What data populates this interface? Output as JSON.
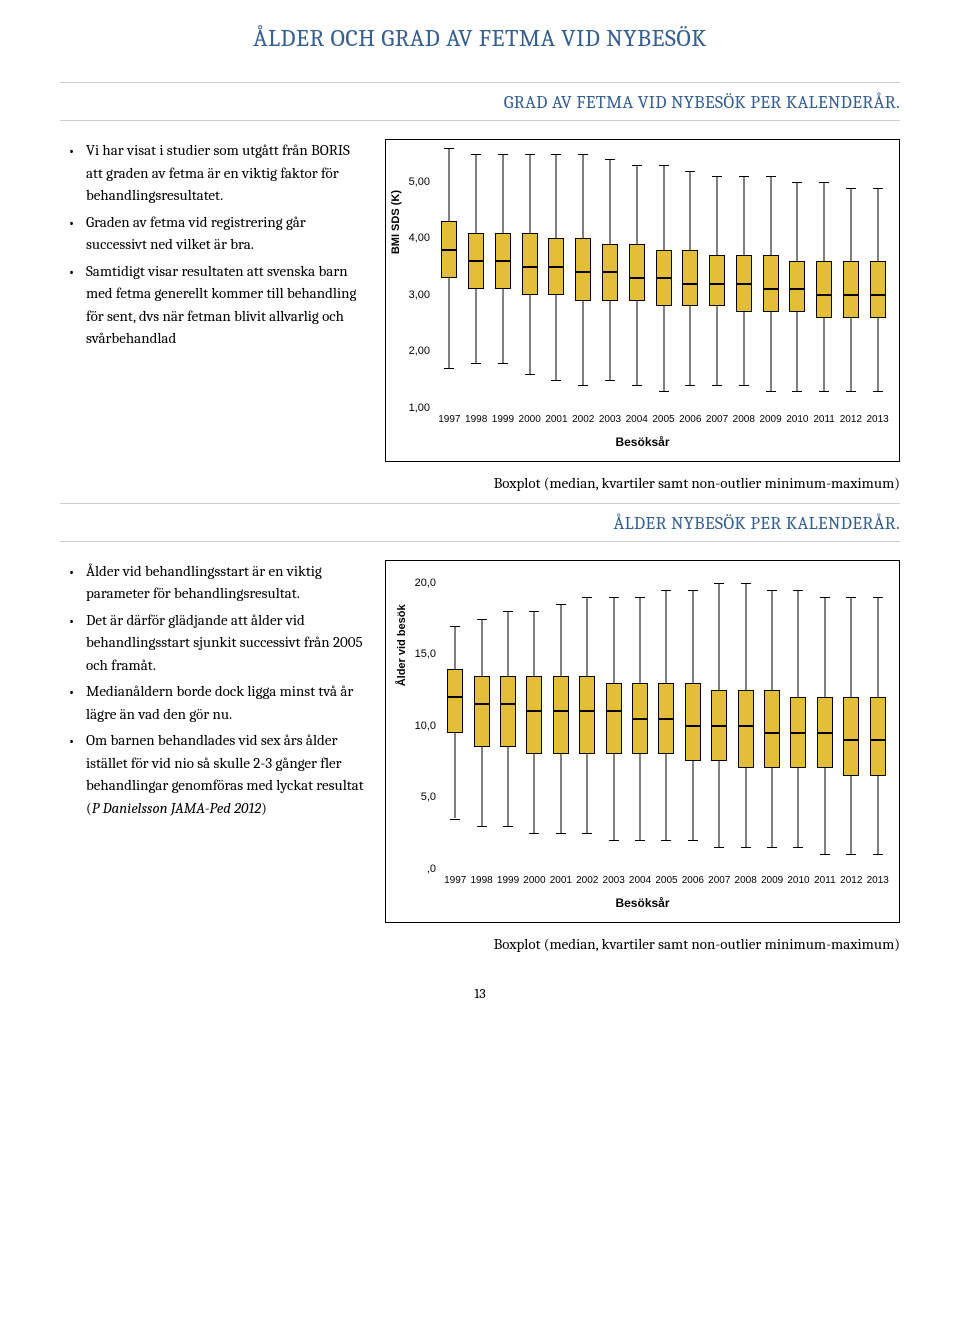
{
  "page_title": "ÅLDER OCH GRAD AV FETMA VID NYBESÖK",
  "section1_title": "GRAD AV FETMA VID NYBESÖK PER KALENDERÅR.",
  "section2_title": "ÅLDER NYBESÖK PER KALENDERÅR.",
  "bullets1": [
    "Vi har visat i studier som utgått från BORIS att graden av fetma är en viktig faktor för behandlingsresultatet.",
    "Graden av fetma vid registrering går successivt ned vilket är bra.",
    "Samtidigt visar resultaten att svenska barn med fetma generellt kommer till behandling för sent, dvs när fetman blivit allvarlig och svårbehandlad"
  ],
  "bullets2": [
    "Ålder vid behandlingsstart är en viktig parameter för behandlingsresultat.",
    "Det är därför glädjande att ålder vid behandlingsstart sjunkit successivt från 2005 och framåt.",
    "Medianåldern borde dock ligga minst två år lägre än vad den gör nu.",
    "Om barnen behandlades vid sex års ålder istället för vid nio så skulle 2-3 gånger fler behandlingar genomföras med lyckat resultat (<em>P Danielsson JAMA-Ped 2012</em>)"
  ],
  "caption": "Boxplot (median, kvartiler samt non-outlier minimum-maximum)",
  "page_number": "13",
  "chart1": {
    "type": "boxplot",
    "ylabel": "BMI SDS (K)",
    "xlabel": "Besöksår",
    "ylim": [
      1.0,
      5.6
    ],
    "yticks": [
      1.0,
      2.0,
      3.0,
      4.0,
      5.0
    ],
    "ytick_labels": [
      "1,00",
      "2,00",
      "3,00",
      "4,00",
      "5,00"
    ],
    "categories": [
      "1997",
      "1998",
      "1999",
      "2000",
      "2001",
      "2002",
      "2003",
      "2004",
      "2005",
      "2006",
      "2007",
      "2008",
      "2009",
      "2010",
      "2011",
      "2012",
      "2013"
    ],
    "box_color": "#e4be39",
    "box_border": "#000000",
    "background": "#ffffff",
    "data": [
      {
        "min": 1.7,
        "q1": 3.3,
        "med": 3.8,
        "q3": 4.3,
        "max": 5.6
      },
      {
        "min": 1.8,
        "q1": 3.1,
        "med": 3.6,
        "q3": 4.1,
        "max": 5.5
      },
      {
        "min": 1.8,
        "q1": 3.1,
        "med": 3.6,
        "q3": 4.1,
        "max": 5.5
      },
      {
        "min": 1.6,
        "q1": 3.0,
        "med": 3.5,
        "q3": 4.1,
        "max": 5.5
      },
      {
        "min": 1.5,
        "q1": 3.0,
        "med": 3.5,
        "q3": 4.0,
        "max": 5.5
      },
      {
        "min": 1.4,
        "q1": 2.9,
        "med": 3.4,
        "q3": 4.0,
        "max": 5.5
      },
      {
        "min": 1.5,
        "q1": 2.9,
        "med": 3.4,
        "q3": 3.9,
        "max": 5.4
      },
      {
        "min": 1.4,
        "q1": 2.9,
        "med": 3.3,
        "q3": 3.9,
        "max": 5.3
      },
      {
        "min": 1.3,
        "q1": 2.8,
        "med": 3.3,
        "q3": 3.8,
        "max": 5.3
      },
      {
        "min": 1.4,
        "q1": 2.8,
        "med": 3.2,
        "q3": 3.8,
        "max": 5.2
      },
      {
        "min": 1.4,
        "q1": 2.8,
        "med": 3.2,
        "q3": 3.7,
        "max": 5.1
      },
      {
        "min": 1.4,
        "q1": 2.7,
        "med": 3.2,
        "q3": 3.7,
        "max": 5.1
      },
      {
        "min": 1.3,
        "q1": 2.7,
        "med": 3.1,
        "q3": 3.7,
        "max": 5.1
      },
      {
        "min": 1.3,
        "q1": 2.7,
        "med": 3.1,
        "q3": 3.6,
        "max": 5.0
      },
      {
        "min": 1.3,
        "q1": 2.6,
        "med": 3.0,
        "q3": 3.6,
        "max": 5.0
      },
      {
        "min": 1.3,
        "q1": 2.6,
        "med": 3.0,
        "q3": 3.6,
        "max": 4.9
      },
      {
        "min": 1.3,
        "q1": 2.6,
        "med": 3.0,
        "q3": 3.6,
        "max": 4.9
      }
    ]
  },
  "chart2": {
    "type": "boxplot",
    "ylabel": "Ålder vid besök",
    "xlabel": "Besöksår",
    "ylim": [
      0.0,
      21.0
    ],
    "yticks": [
      0.0,
      5.0,
      10.0,
      15.0,
      20.0
    ],
    "ytick_labels": [
      ",0",
      "5,0",
      "10,0",
      "15,0",
      "20,0"
    ],
    "categories": [
      "1997",
      "1998",
      "1999",
      "2000",
      "2001",
      "2002",
      "2003",
      "2004",
      "2005",
      "2006",
      "2007",
      "2008",
      "2009",
      "2010",
      "2011",
      "2012",
      "2013"
    ],
    "box_color": "#e4be39",
    "box_border": "#000000",
    "background": "#ffffff",
    "data": [
      {
        "min": 3.5,
        "q1": 9.5,
        "med": 12.0,
        "q3": 14.0,
        "max": 17.0
      },
      {
        "min": 3.0,
        "q1": 8.5,
        "med": 11.5,
        "q3": 13.5,
        "max": 17.5
      },
      {
        "min": 3.0,
        "q1": 8.5,
        "med": 11.5,
        "q3": 13.5,
        "max": 18.0
      },
      {
        "min": 2.5,
        "q1": 8.0,
        "med": 11.0,
        "q3": 13.5,
        "max": 18.0
      },
      {
        "min": 2.5,
        "q1": 8.0,
        "med": 11.0,
        "q3": 13.5,
        "max": 18.5
      },
      {
        "min": 2.5,
        "q1": 8.0,
        "med": 11.0,
        "q3": 13.5,
        "max": 19.0
      },
      {
        "min": 2.0,
        "q1": 8.0,
        "med": 11.0,
        "q3": 13.0,
        "max": 19.0
      },
      {
        "min": 2.0,
        "q1": 8.0,
        "med": 10.5,
        "q3": 13.0,
        "max": 19.0
      },
      {
        "min": 2.0,
        "q1": 8.0,
        "med": 10.5,
        "q3": 13.0,
        "max": 19.5
      },
      {
        "min": 2.0,
        "q1": 7.5,
        "med": 10.0,
        "q3": 13.0,
        "max": 19.5
      },
      {
        "min": 1.5,
        "q1": 7.5,
        "med": 10.0,
        "q3": 12.5,
        "max": 20.0
      },
      {
        "min": 1.5,
        "q1": 7.0,
        "med": 10.0,
        "q3": 12.5,
        "max": 20.0
      },
      {
        "min": 1.5,
        "q1": 7.0,
        "med": 9.5,
        "q3": 12.5,
        "max": 19.5
      },
      {
        "min": 1.5,
        "q1": 7.0,
        "med": 9.5,
        "q3": 12.0,
        "max": 19.5
      },
      {
        "min": 1.0,
        "q1": 7.0,
        "med": 9.5,
        "q3": 12.0,
        "max": 19.0
      },
      {
        "min": 1.0,
        "q1": 6.5,
        "med": 9.0,
        "q3": 12.0,
        "max": 19.0
      },
      {
        "min": 1.0,
        "q1": 6.5,
        "med": 9.0,
        "q3": 12.0,
        "max": 19.0
      }
    ]
  }
}
